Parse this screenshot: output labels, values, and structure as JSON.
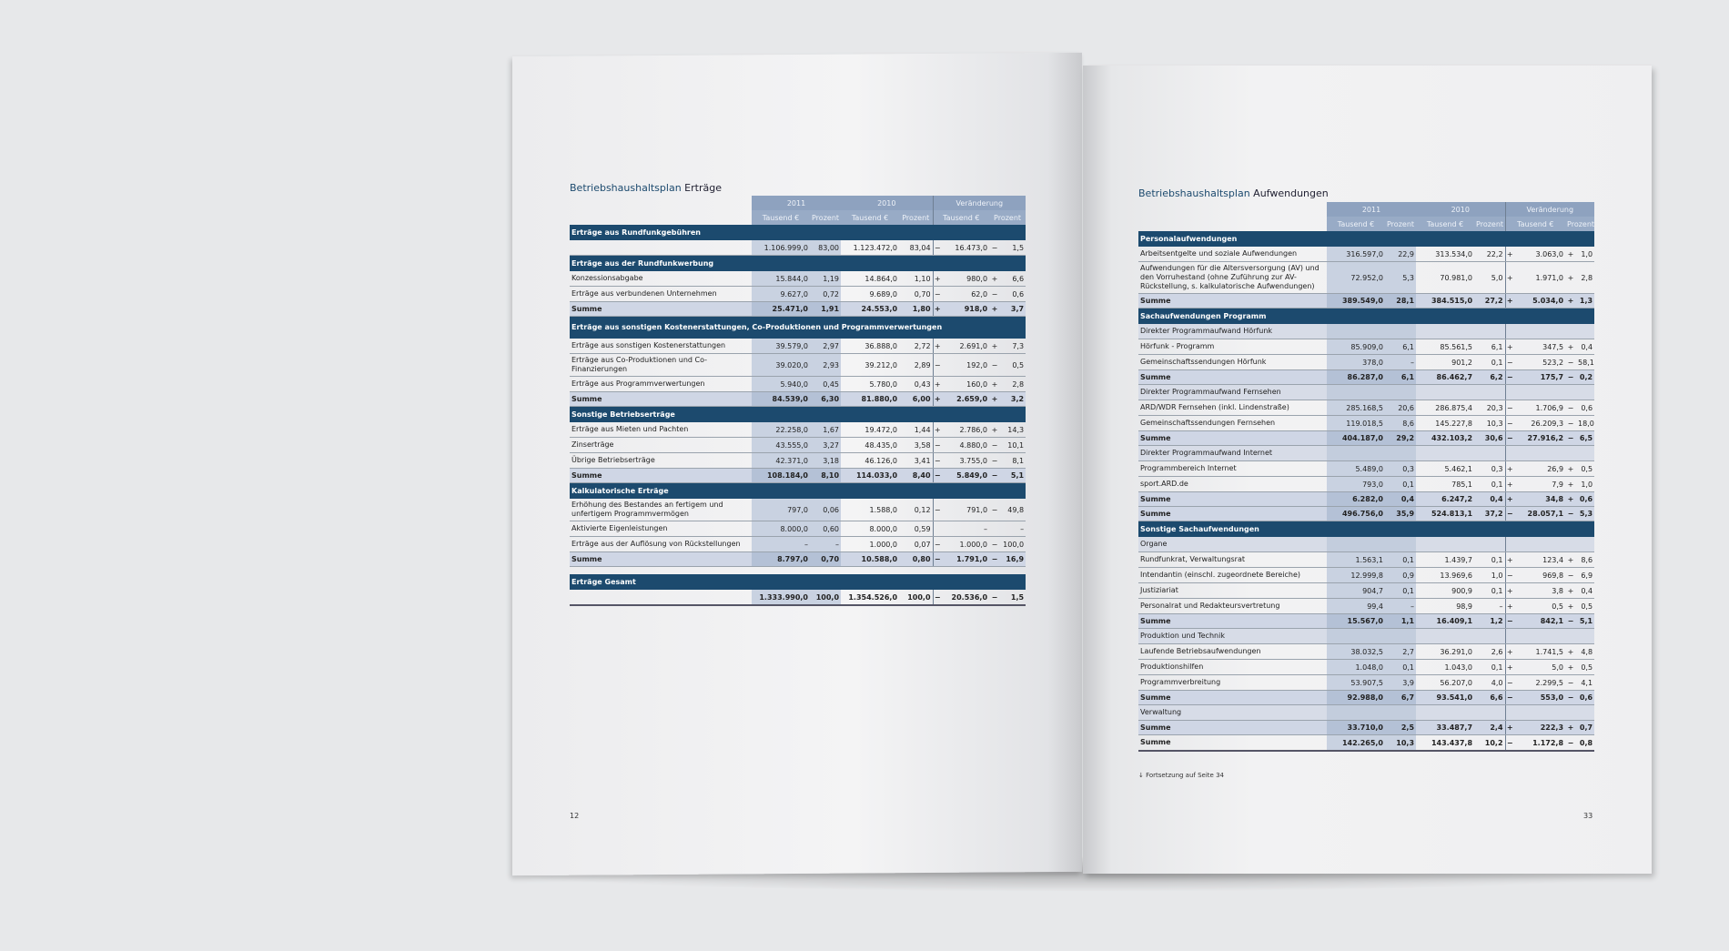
{
  "colors": {
    "section": "#1c4a6e",
    "header": "#8ea2bf",
    "column_shade": "#c9d2e1",
    "background": "#e7e8ea"
  },
  "header": {
    "years": [
      "2011",
      "2010",
      "Veränderung"
    ],
    "units": [
      "Tausend €",
      "Prozent",
      "Tausend €",
      "Prozent",
      "Tausend €",
      "Prozent"
    ]
  },
  "left": {
    "title_bold": "Betriebshaushaltsplan",
    "title_rest": " Erträge",
    "page_number": "12",
    "rows": [
      {
        "type": "section",
        "label": "Erträge aus Rundfunkgebühren"
      },
      {
        "type": "data",
        "label": "",
        "cells": [
          "1.106.999,0",
          "83,00",
          "1.123.472,0",
          "83,04",
          "−",
          "16.473,0",
          "−",
          "1,5"
        ]
      },
      {
        "type": "section",
        "label": "Erträge aus der Rundfunkwerbung"
      },
      {
        "type": "data",
        "label": "Konzessionsabgabe",
        "cells": [
          "15.844,0",
          "1,19",
          "14.864,0",
          "1,10",
          "+",
          "980,0",
          "+",
          "6,6"
        ]
      },
      {
        "type": "data",
        "label": "Erträge aus verbundenen Unternehmen",
        "cells": [
          "9.627,0",
          "0,72",
          "9.689,0",
          "0,70",
          "−",
          "62,0",
          "−",
          "0,6"
        ]
      },
      {
        "type": "sum",
        "label": "Summe",
        "cells": [
          "25.471,0",
          "1,91",
          "24.553,0",
          "1,80",
          "+",
          "918,0",
          "+",
          "3,7"
        ]
      },
      {
        "type": "section mid",
        "label": "Erträge aus sonstigen Kostenerstattungen, Co-Produktionen und Programmverwertungen"
      },
      {
        "type": "data",
        "label": "Erträge aus sonstigen Kostenerstattungen",
        "cells": [
          "39.579,0",
          "2,97",
          "36.888,0",
          "2,72",
          "+",
          "2.691,0",
          "+",
          "7,3"
        ]
      },
      {
        "type": "data mid",
        "label": "Erträge aus Co-Produktionen und Co-Finanzierungen",
        "cells": [
          "39.020,0",
          "2,93",
          "39.212,0",
          "2,89",
          "−",
          "192,0",
          "−",
          "0,5"
        ]
      },
      {
        "type": "data",
        "label": "Erträge aus Programmverwertungen",
        "cells": [
          "5.940,0",
          "0,45",
          "5.780,0",
          "0,43",
          "+",
          "160,0",
          "+",
          "2,8"
        ]
      },
      {
        "type": "sum",
        "label": "Summe",
        "cells": [
          "84.539,0",
          "6,30",
          "81.880,0",
          "6,00",
          "+",
          "2.659,0",
          "+",
          "3,2"
        ]
      },
      {
        "type": "section",
        "label": "Sonstige Betriebserträge"
      },
      {
        "type": "data",
        "label": "Erträge aus Mieten und Pachten",
        "cells": [
          "22.258,0",
          "1,67",
          "19.472,0",
          "1,44",
          "+",
          "2.786,0",
          "+",
          "14,3"
        ]
      },
      {
        "type": "data",
        "label": "Zinserträge",
        "cells": [
          "43.555,0",
          "3,27",
          "48.435,0",
          "3,58",
          "−",
          "4.880,0",
          "−",
          "10,1"
        ]
      },
      {
        "type": "data",
        "label": "Übrige Betriebserträge",
        "cells": [
          "42.371,0",
          "3,18",
          "46.126,0",
          "3,41",
          "−",
          "3.755,0",
          "−",
          "8,1"
        ]
      },
      {
        "type": "sum",
        "label": "Summe",
        "cells": [
          "108.184,0",
          "8,10",
          "114.033,0",
          "8,40",
          "−",
          "5.849,0",
          "−",
          "5,1"
        ]
      },
      {
        "type": "section",
        "label": "Kalkulatorische Erträge"
      },
      {
        "type": "data mid",
        "label": "Erhöhung des Bestandes an fertigem und unfertigem Programmvermögen",
        "cells": [
          "797,0",
          "0,06",
          "1.588,0",
          "0,12",
          "−",
          "791,0",
          "−",
          "49,8"
        ]
      },
      {
        "type": "data",
        "label": "Aktivierte Eigenleistungen",
        "cells": [
          "8.000,0",
          "0,60",
          "8.000,0",
          "0,59",
          "",
          "–",
          "",
          "–"
        ]
      },
      {
        "type": "data",
        "label": "Erträge aus der Auflösung von Rückstellungen",
        "cells": [
          "–",
          "–",
          "1.000,0",
          "0,07",
          "−",
          "1.000,0",
          "−",
          "100,0"
        ]
      },
      {
        "type": "sum",
        "label": "Summe",
        "cells": [
          "8.797,0",
          "0,70",
          "10.588,0",
          "0,80",
          "−",
          "1.791,0",
          "−",
          "16,9"
        ]
      },
      {
        "type": "gap",
        "label": ""
      },
      {
        "type": "section",
        "label": "Erträge Gesamt"
      },
      {
        "type": "total",
        "label": "",
        "cells": [
          "1.333.990,0",
          "100,0",
          "1.354.526,0",
          "100,0",
          "−",
          "20.536,0",
          "−",
          "1,5"
        ]
      }
    ]
  },
  "right": {
    "title_bold": "Betriebshaushaltsplan",
    "title_rest": " Aufwendungen",
    "page_number": "33",
    "footnote": "↓ Fortsetzung auf Seite 34",
    "rows": [
      {
        "type": "section",
        "label": "Personalaufwendungen"
      },
      {
        "type": "data",
        "label": "Arbeitsentgelte und soziale Aufwendungen",
        "cells": [
          "316.597,0",
          "22,9",
          "313.534,0",
          "22,2",
          "+",
          "3.063,0",
          "+",
          "1,0"
        ]
      },
      {
        "type": "data tall",
        "label": "Aufwendungen für die Altersversorgung (AV) und den Vorruhestand (ohne Zuführung zur AV-Rückstellung, s. kalkulatorische Aufwendungen)",
        "cells": [
          "72.952,0",
          "5,3",
          "70.981,0",
          "5,0",
          "+",
          "1.971,0",
          "+",
          "2,8"
        ]
      },
      {
        "type": "sum",
        "label": "Summe",
        "cells": [
          "389.549,0",
          "28,1",
          "384.515,0",
          "27,2",
          "+",
          "5.034,0",
          "+",
          "1,3"
        ]
      },
      {
        "type": "section",
        "label": "Sachaufwendungen Programm"
      },
      {
        "type": "subhead",
        "label": "Direkter Programmaufwand Hörfunk"
      },
      {
        "type": "data",
        "label": "Hörfunk - Programm",
        "cells": [
          "85.909,0",
          "6,1",
          "85.561,5",
          "6,1",
          "+",
          "347,5",
          "+",
          "0,4"
        ]
      },
      {
        "type": "data",
        "label": "Gemeinschaftssendungen Hörfunk",
        "cells": [
          "378,0",
          "–",
          "901,2",
          "0,1",
          "−",
          "523,2",
          "−",
          "58,1"
        ]
      },
      {
        "type": "sum",
        "label": "Summe",
        "cells": [
          "86.287,0",
          "6,1",
          "86.462,7",
          "6,2",
          "−",
          "175,7",
          "−",
          "0,2"
        ]
      },
      {
        "type": "subhead",
        "label": "Direkter Programmaufwand Fernsehen"
      },
      {
        "type": "data",
        "label": "ARD/WDR Fernsehen (inkl. Lindenstraße)",
        "cells": [
          "285.168,5",
          "20,6",
          "286.875,4",
          "20,3",
          "−",
          "1.706,9",
          "−",
          "0,6"
        ]
      },
      {
        "type": "data",
        "label": "Gemeinschaftssendungen Fernsehen",
        "cells": [
          "119.018,5",
          "8,6",
          "145.227,8",
          "10,3",
          "−",
          "26.209,3",
          "−",
          "18,0"
        ]
      },
      {
        "type": "sum",
        "label": "Summe",
        "cells": [
          "404.187,0",
          "29,2",
          "432.103,2",
          "30,6",
          "−",
          "27.916,2",
          "−",
          "6,5"
        ]
      },
      {
        "type": "subhead",
        "label": "Direkter Programmaufwand Internet"
      },
      {
        "type": "data",
        "label": "Programmbereich Internet",
        "cells": [
          "5.489,0",
          "0,3",
          "5.462,1",
          "0,3",
          "+",
          "26,9",
          "+",
          "0,5"
        ]
      },
      {
        "type": "data",
        "label": "sport.ARD.de",
        "cells": [
          "793,0",
          "0,1",
          "785,1",
          "0,1",
          "+",
          "7,9",
          "+",
          "1,0"
        ]
      },
      {
        "type": "sum",
        "label": "Summe",
        "cells": [
          "6.282,0",
          "0,4",
          "6.247,2",
          "0,4",
          "+",
          "34,8",
          "+",
          "0,6"
        ]
      },
      {
        "type": "sum",
        "label": "Summe",
        "cells": [
          "496.756,0",
          "35,9",
          "524.813,1",
          "37,2",
          "−",
          "28.057,1",
          "−",
          "5,3"
        ]
      },
      {
        "type": "section",
        "label": "Sonstige Sachaufwendungen"
      },
      {
        "type": "subhead",
        "label": "Organe"
      },
      {
        "type": "data",
        "label": "Rundfunkrat, Verwaltungsrat",
        "cells": [
          "1.563,1",
          "0,1",
          "1.439,7",
          "0,1",
          "+",
          "123,4",
          "+",
          "8,6"
        ]
      },
      {
        "type": "data",
        "label": "Intendantin (einschl. zugeordnete Bereiche)",
        "cells": [
          "12.999,8",
          "0,9",
          "13.969,6",
          "1,0",
          "−",
          "969,8",
          "−",
          "6,9"
        ]
      },
      {
        "type": "data",
        "label": "Justiziariat",
        "cells": [
          "904,7",
          "0,1",
          "900,9",
          "0,1",
          "+",
          "3,8",
          "+",
          "0,4"
        ]
      },
      {
        "type": "data",
        "label": "Personalrat und Redakteursvertretung",
        "cells": [
          "99,4",
          "–",
          "98,9",
          "–",
          "+",
          "0,5",
          "+",
          "0,5"
        ]
      },
      {
        "type": "sum",
        "label": "Summe",
        "cells": [
          "15.567,0",
          "1,1",
          "16.409,1",
          "1,2",
          "−",
          "842,1",
          "−",
          "5,1"
        ]
      },
      {
        "type": "subhead",
        "label": "Produktion und Technik"
      },
      {
        "type": "data",
        "label": "Laufende Betriebsaufwendungen",
        "cells": [
          "38.032,5",
          "2,7",
          "36.291,0",
          "2,6",
          "+",
          "1.741,5",
          "+",
          "4,8"
        ]
      },
      {
        "type": "data",
        "label": "Produktionshilfen",
        "cells": [
          "1.048,0",
          "0,1",
          "1.043,0",
          "0,1",
          "+",
          "5,0",
          "+",
          "0,5"
        ]
      },
      {
        "type": "data",
        "label": "Programmverbreitung",
        "cells": [
          "53.907,5",
          "3,9",
          "56.207,0",
          "4,0",
          "−",
          "2.299,5",
          "−",
          "4,1"
        ]
      },
      {
        "type": "sum",
        "label": "Summe",
        "cells": [
          "92.988,0",
          "6,7",
          "93.541,0",
          "6,6",
          "−",
          "553,0",
          "−",
          "0,6"
        ]
      },
      {
        "type": "subhead",
        "label": "Verwaltung"
      },
      {
        "type": "sum",
        "label": "Summe",
        "cells": [
          "33.710,0",
          "2,5",
          "33.487,7",
          "2,4",
          "+",
          "222,3",
          "+",
          "0,7"
        ]
      },
      {
        "type": "total",
        "label": "Summe",
        "cells": [
          "142.265,0",
          "10,3",
          "143.437,8",
          "10,2",
          "−",
          "1.172,8",
          "−",
          "0,8"
        ]
      }
    ]
  }
}
